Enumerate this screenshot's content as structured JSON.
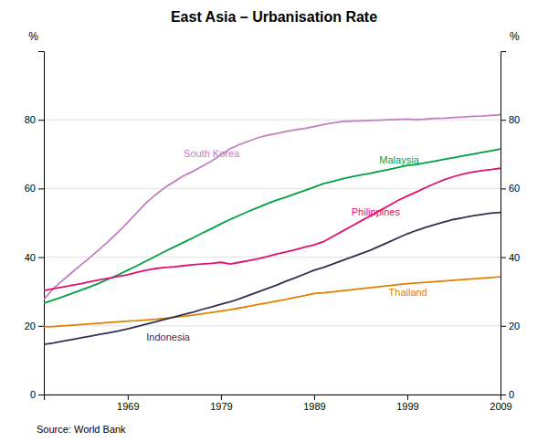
{
  "chart_data": {
    "type": "line",
    "title": "East Asia – Urbanisation Rate",
    "source": "Source: World Bank",
    "ylabel": "%",
    "y2label": "%",
    "grid": true,
    "xlim": [
      1960,
      2009
    ],
    "xticks": [
      1969,
      1979,
      1989,
      1999,
      2009
    ],
    "ylim": [
      0,
      100
    ],
    "yticks": [
      0,
      20,
      40,
      60,
      80
    ],
    "y2lim": [
      0,
      100
    ],
    "y2ticks": [
      0,
      20,
      40,
      60,
      80
    ],
    "x": [
      1960,
      1961,
      1962,
      1963,
      1964,
      1965,
      1966,
      1967,
      1968,
      1969,
      1970,
      1971,
      1972,
      1973,
      1974,
      1975,
      1976,
      1977,
      1978,
      1979,
      1980,
      1981,
      1982,
      1983,
      1984,
      1985,
      1986,
      1987,
      1988,
      1989,
      1990,
      1991,
      1992,
      1993,
      1994,
      1995,
      1996,
      1997,
      1998,
      1999,
      2000,
      2001,
      2002,
      2003,
      2004,
      2005,
      2006,
      2007,
      2008,
      2009
    ],
    "series": [
      {
        "color": "#c080c0",
        "values": [
          27.7,
          30.8,
          33.2,
          35.5,
          37.8,
          40.0,
          42.4,
          44.8,
          47.4,
          50.1,
          53.0,
          55.9,
          58.2,
          60.3,
          62.0,
          63.7,
          65.0,
          66.5,
          68.0,
          69.8,
          71.6,
          72.8,
          73.8,
          74.8,
          75.5,
          76.0,
          76.6,
          77.1,
          77.5,
          78.0,
          78.6,
          79.1,
          79.5,
          79.6,
          79.7,
          79.8,
          79.9,
          80.0,
          80.1,
          80.2,
          80.0,
          80.2,
          80.4,
          80.5,
          80.7,
          80.8,
          81.0,
          81.1,
          81.3,
          81.5
        ]
      },
      {
        "color": "#00a040",
        "values": [
          26.6,
          27.5,
          28.4,
          29.4,
          30.4,
          31.4,
          32.5,
          33.7,
          34.9,
          36.2,
          37.5,
          38.9,
          40.3,
          41.7,
          43.0,
          44.3,
          45.6,
          47.0,
          48.3,
          49.7,
          51.0,
          52.2,
          53.4,
          54.5,
          55.6,
          56.6,
          57.5,
          58.5,
          59.4,
          60.4,
          61.4,
          62.1,
          62.8,
          63.4,
          63.9,
          64.4,
          65.0,
          65.5,
          66.1,
          66.7,
          67.0,
          67.5,
          68.0,
          68.5,
          69.0,
          69.5,
          70.0,
          70.5,
          71.0,
          71.5
        ]
      },
      {
        "color": "#e01070",
        "values": [
          30.3,
          30.8,
          31.3,
          31.8,
          32.3,
          32.9,
          33.4,
          33.9,
          34.4,
          34.9,
          35.6,
          36.2,
          36.7,
          37.0,
          37.2,
          37.5,
          37.8,
          38.0,
          38.2,
          38.5,
          38.0,
          38.5,
          39.0,
          39.5,
          40.2,
          40.9,
          41.5,
          42.2,
          42.9,
          43.6,
          44.5,
          46.0,
          47.5,
          49.0,
          50.5,
          52.0,
          53.5,
          55.0,
          56.5,
          57.8,
          59.0,
          60.3,
          61.5,
          62.6,
          63.5,
          64.2,
          64.8,
          65.2,
          65.5,
          65.9
        ]
      },
      {
        "color": "#e08000",
        "values": [
          19.7,
          19.8,
          20.0,
          20.2,
          20.4,
          20.6,
          20.8,
          21.0,
          21.2,
          21.4,
          21.5,
          21.7,
          21.9,
          22.2,
          22.5,
          22.8,
          23.1,
          23.5,
          23.9,
          24.3,
          24.7,
          25.2,
          25.7,
          26.2,
          26.7,
          27.2,
          27.7,
          28.3,
          28.8,
          29.4,
          29.6,
          29.9,
          30.2,
          30.5,
          30.8,
          31.1,
          31.4,
          31.7,
          32.0,
          32.3,
          32.5,
          32.7,
          32.9,
          33.1,
          33.3,
          33.5,
          33.7,
          33.9,
          34.1,
          34.3
        ]
      },
      {
        "color": "#303050",
        "values": [
          14.6,
          15.0,
          15.5,
          16.0,
          16.5,
          17.0,
          17.5,
          18.0,
          18.5,
          19.1,
          19.8,
          20.5,
          21.2,
          21.9,
          22.6,
          23.3,
          24.0,
          24.8,
          25.5,
          26.3,
          27.0,
          27.9,
          28.9,
          29.9,
          30.9,
          31.9,
          33.0,
          34.0,
          35.1,
          36.2,
          37.0,
          38.0,
          39.0,
          40.0,
          41.0,
          42.0,
          43.2,
          44.4,
          45.6,
          46.8,
          47.8,
          48.7,
          49.5,
          50.3,
          51.0,
          51.5,
          52.0,
          52.4,
          52.8,
          53.0
        ]
      }
    ],
    "annotations": [
      {
        "text": "South Korea",
        "x": 1975,
        "y": 70,
        "color": "#c080c0"
      },
      {
        "text": "Malaysia",
        "x": 1996,
        "y": 68,
        "color": "#00a040"
      },
      {
        "text": "Philippines",
        "x": 1993,
        "y": 53,
        "color": "#e01070"
      },
      {
        "text": "Thailand",
        "x": 1997,
        "y": 29.5,
        "color": "#e08000"
      },
      {
        "text": "Indonesia",
        "x": 1971,
        "y": 16.5,
        "color": "#303050"
      }
    ]
  }
}
